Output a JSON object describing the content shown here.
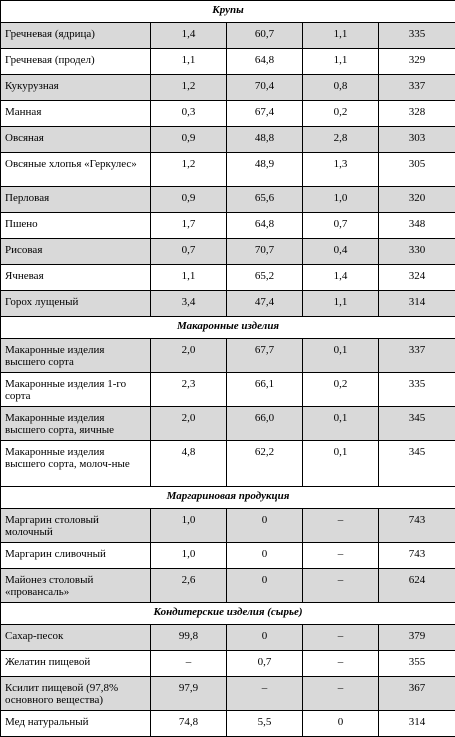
{
  "sections": [
    {
      "title": "Крупы",
      "rows": [
        {
          "name": "Гречневая (ядрица)",
          "v1": "1,4",
          "v2": "60,7",
          "v3": "1,1",
          "v4": "335"
        },
        {
          "name": "Гречневая (продел)",
          "v1": "1,1",
          "v2": "64,8",
          "v3": "1,1",
          "v4": "329"
        },
        {
          "name": "Кукурузная",
          "v1": "1,2",
          "v2": "70,4",
          "v3": "0,8",
          "v4": "337"
        },
        {
          "name": "Манная",
          "v1": "0,3",
          "v2": "67,4",
          "v3": "0,2",
          "v4": "328"
        },
        {
          "name": "Овсяная",
          "v1": "0,9",
          "v2": "48,8",
          "v3": "2,8",
          "v4": "303"
        },
        {
          "name": "Овсяные хлопья «Геркулес»",
          "v1": "1,2",
          "v2": "48,9",
          "v3": "1,3",
          "v4": "305"
        },
        {
          "name": "Перловая",
          "v1": "0,9",
          "v2": "65,6",
          "v3": "1,0",
          "v4": "320"
        },
        {
          "name": "Пшено",
          "v1": "1,7",
          "v2": "64,8",
          "v3": "0,7",
          "v4": "348"
        },
        {
          "name": "Рисовая",
          "v1": "0,7",
          "v2": "70,7",
          "v3": "0,4",
          "v4": "330"
        },
        {
          "name": "Ячневая",
          "v1": "1,1",
          "v2": "65,2",
          "v3": "1,4",
          "v4": "324"
        },
        {
          "name": "Горох лущеный",
          "v1": "3,4",
          "v2": "47,4",
          "v3": "1,1",
          "v4": "314"
        }
      ]
    },
    {
      "title": "Макаронные изделия",
      "rows": [
        {
          "name": "Макаронные изделия высшего сорта",
          "v1": "2,0",
          "v2": "67,7",
          "v3": "0,1",
          "v4": "337"
        },
        {
          "name": "Макаронные изделия 1-го сорта",
          "v1": "2,3",
          "v2": "66,1",
          "v3": "0,2",
          "v4": "335"
        },
        {
          "name": "Макаронные изделия высшего сорта, яичные",
          "v1": "2,0",
          "v2": "66,0",
          "v3": "0,1",
          "v4": "345"
        },
        {
          "name": "Макаронные изделия высшего сорта, молоч-ные",
          "v1": "4,8",
          "v2": "62,2",
          "v3": "0,1",
          "v4": "345"
        }
      ]
    },
    {
      "title": "Маргариновая продукция",
      "rows": [
        {
          "name": "Маргарин столовый молочный",
          "v1": "1,0",
          "v2": "0",
          "v3": "–",
          "v4": "743"
        },
        {
          "name": "Маргарин сливочный",
          "v1": "1,0",
          "v2": "0",
          "v3": "–",
          "v4": "743"
        },
        {
          "name": "Майонез столовый «провансаль»",
          "v1": "2,6",
          "v2": "0",
          "v3": "–",
          "v4": "624"
        }
      ]
    },
    {
      "title": "Кондитерские изделия (сырье)",
      "rows": [
        {
          "name": "Сахар-песок",
          "v1": "99,8",
          "v2": "0",
          "v3": "–",
          "v4": "379"
        },
        {
          "name": "Желатин пищевой",
          "v1": "–",
          "v2": "0,7",
          "v3": "–",
          "v4": "355"
        },
        {
          "name": "Ксилит пищевой (97,8% основного вещества)",
          "v1": "97,9",
          "v2": "–",
          "v3": "–",
          "v4": "367"
        },
        {
          "name": "Мед натуральный",
          "v1": "74,8",
          "v2": "5,5",
          "v3": "0",
          "v4": "314"
        }
      ]
    }
  ]
}
